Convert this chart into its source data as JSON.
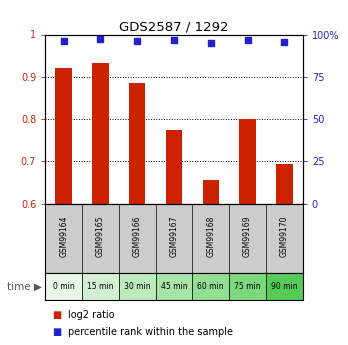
{
  "title": "GDS2587 / 1292",
  "categories": [
    "GSM99164",
    "GSM99165",
    "GSM99166",
    "GSM99167",
    "GSM99168",
    "GSM99169",
    "GSM99170"
  ],
  "time_labels": [
    "0 min",
    "15 min",
    "30 min",
    "45 min",
    "60 min",
    "75 min",
    "90 min"
  ],
  "log2_values": [
    0.921,
    0.932,
    0.886,
    0.773,
    0.656,
    0.8,
    0.693
  ],
  "percentile_values": [
    96.0,
    97.4,
    96.2,
    97.0,
    94.8,
    96.5,
    95.8
  ],
  "ylim_left": [
    0.6,
    1.0
  ],
  "ylim_right": [
    0,
    100
  ],
  "yticks_left": [
    0.6,
    0.7,
    0.8,
    0.9,
    1.0
  ],
  "yticks_right": [
    0,
    25,
    50,
    75,
    100
  ],
  "bar_color": "#cc2200",
  "dot_color": "#2222cc",
  "gsm_bg_color": "#cccccc",
  "time_bg_colors": [
    "#e8f8e8",
    "#d4f0d4",
    "#beebbe",
    "#a8e4a8",
    "#92de92",
    "#7cd87c",
    "#55cc55"
  ],
  "legend_log2": "log2 ratio",
  "legend_pct": "percentile rank within the sample",
  "label_color_left": "#cc2200",
  "label_color_right": "#2222cc"
}
